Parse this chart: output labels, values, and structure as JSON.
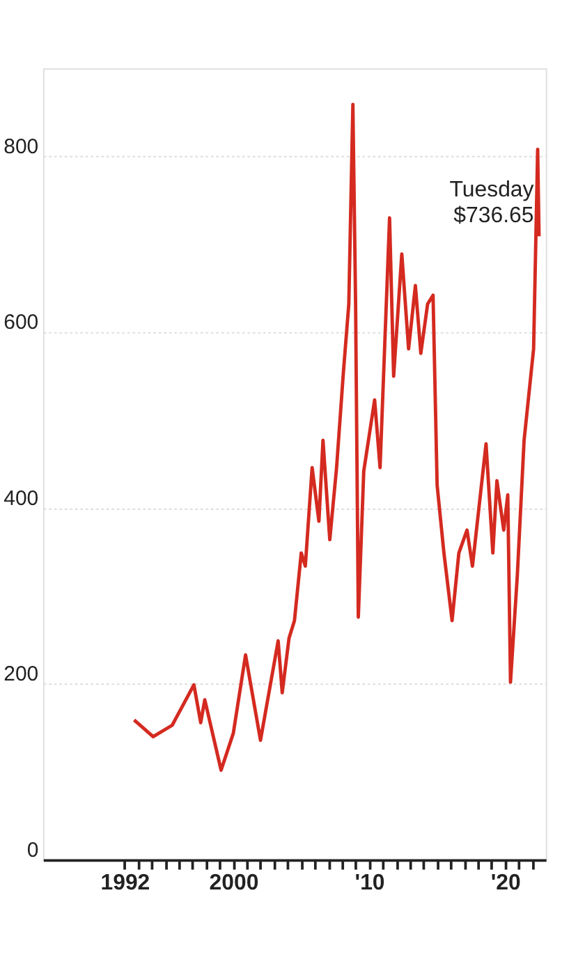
{
  "chart_data": {
    "type": "line",
    "xlim": [
      1986,
      2023
    ],
    "ylim": [
      0,
      900
    ],
    "yticks": [
      0,
      200,
      400,
      600,
      800
    ],
    "xticks": [
      {
        "value": 1992,
        "label": "1992"
      },
      {
        "value": 1993,
        "label": null
      },
      {
        "value": 1994,
        "label": null
      },
      {
        "value": 1995,
        "label": null
      },
      {
        "value": 1996,
        "label": null
      },
      {
        "value": 1997,
        "label": null
      },
      {
        "value": 1998,
        "label": null
      },
      {
        "value": 1999,
        "label": null
      },
      {
        "value": 2000,
        "label": "2000"
      },
      {
        "value": 2001,
        "label": null
      },
      {
        "value": 2002,
        "label": null
      },
      {
        "value": 2003,
        "label": null
      },
      {
        "value": 2004,
        "label": null
      },
      {
        "value": 2005,
        "label": null
      },
      {
        "value": 2006,
        "label": null
      },
      {
        "value": 2007,
        "label": null
      },
      {
        "value": 2008,
        "label": null
      },
      {
        "value": 2009,
        "label": null
      },
      {
        "value": 2010,
        "label": "'10"
      },
      {
        "value": 2011,
        "label": null
      },
      {
        "value": 2012,
        "label": null
      },
      {
        "value": 2013,
        "label": null
      },
      {
        "value": 2014,
        "label": null
      },
      {
        "value": 2015,
        "label": null
      },
      {
        "value": 2016,
        "label": null
      },
      {
        "value": 2017,
        "label": null
      },
      {
        "value": 2018,
        "label": null
      },
      {
        "value": 2019,
        "label": null
      },
      {
        "value": 2020,
        "label": "'20"
      },
      {
        "value": 2021,
        "label": null
      },
      {
        "value": 2022,
        "label": null
      }
    ],
    "grid": "y",
    "legend": false,
    "marker": "none",
    "line_style": "solid",
    "series": [
      {
        "color": "#d42a20",
        "x": [
          1992.7,
          1994.1,
          1995.5,
          1997.1,
          1997.6,
          1997.9,
          1999.1,
          2000,
          2000.9,
          2002,
          2003.3,
          2003.6,
          2004.1,
          2004.5,
          2005.0,
          2005.3,
          2005.8,
          2006.3,
          2006.6,
          2007.1,
          2007.6,
          2008.1,
          2008.5,
          2008.8,
          2009.0,
          2009.2,
          2009.6,
          2010.4,
          2010.8,
          2011.5,
          2011.8,
          2012.4,
          2012.9,
          2013.4,
          2013.8,
          2014.3,
          2014.7,
          2015.0,
          2015.5,
          2016.1,
          2016.6,
          2017.2,
          2017.6,
          2018.6,
          2019.1,
          2019.4,
          2019.9,
          2020.2,
          2020.4,
          2020.9,
          2021.4,
          2022.1,
          2022.4,
          2022.5
        ],
        "values": [
          159,
          140,
          153,
          199,
          156,
          182,
          102,
          144,
          233,
          136,
          249,
          190,
          252,
          272,
          349,
          334,
          446,
          385,
          477,
          364,
          446,
          554,
          632,
          859,
          632,
          276,
          442,
          523,
          446,
          730,
          550,
          689,
          581,
          653,
          576,
          632,
          642,
          426,
          349,
          272,
          349,
          375,
          334,
          473,
          349,
          431,
          375,
          415,
          202,
          323,
          477,
          581,
          808,
          709
        ]
      }
    ],
    "annotations": [
      {
        "text": "Tuesday\n$736.65",
        "x": 2022.5,
        "y": 736.65
      }
    ]
  }
}
